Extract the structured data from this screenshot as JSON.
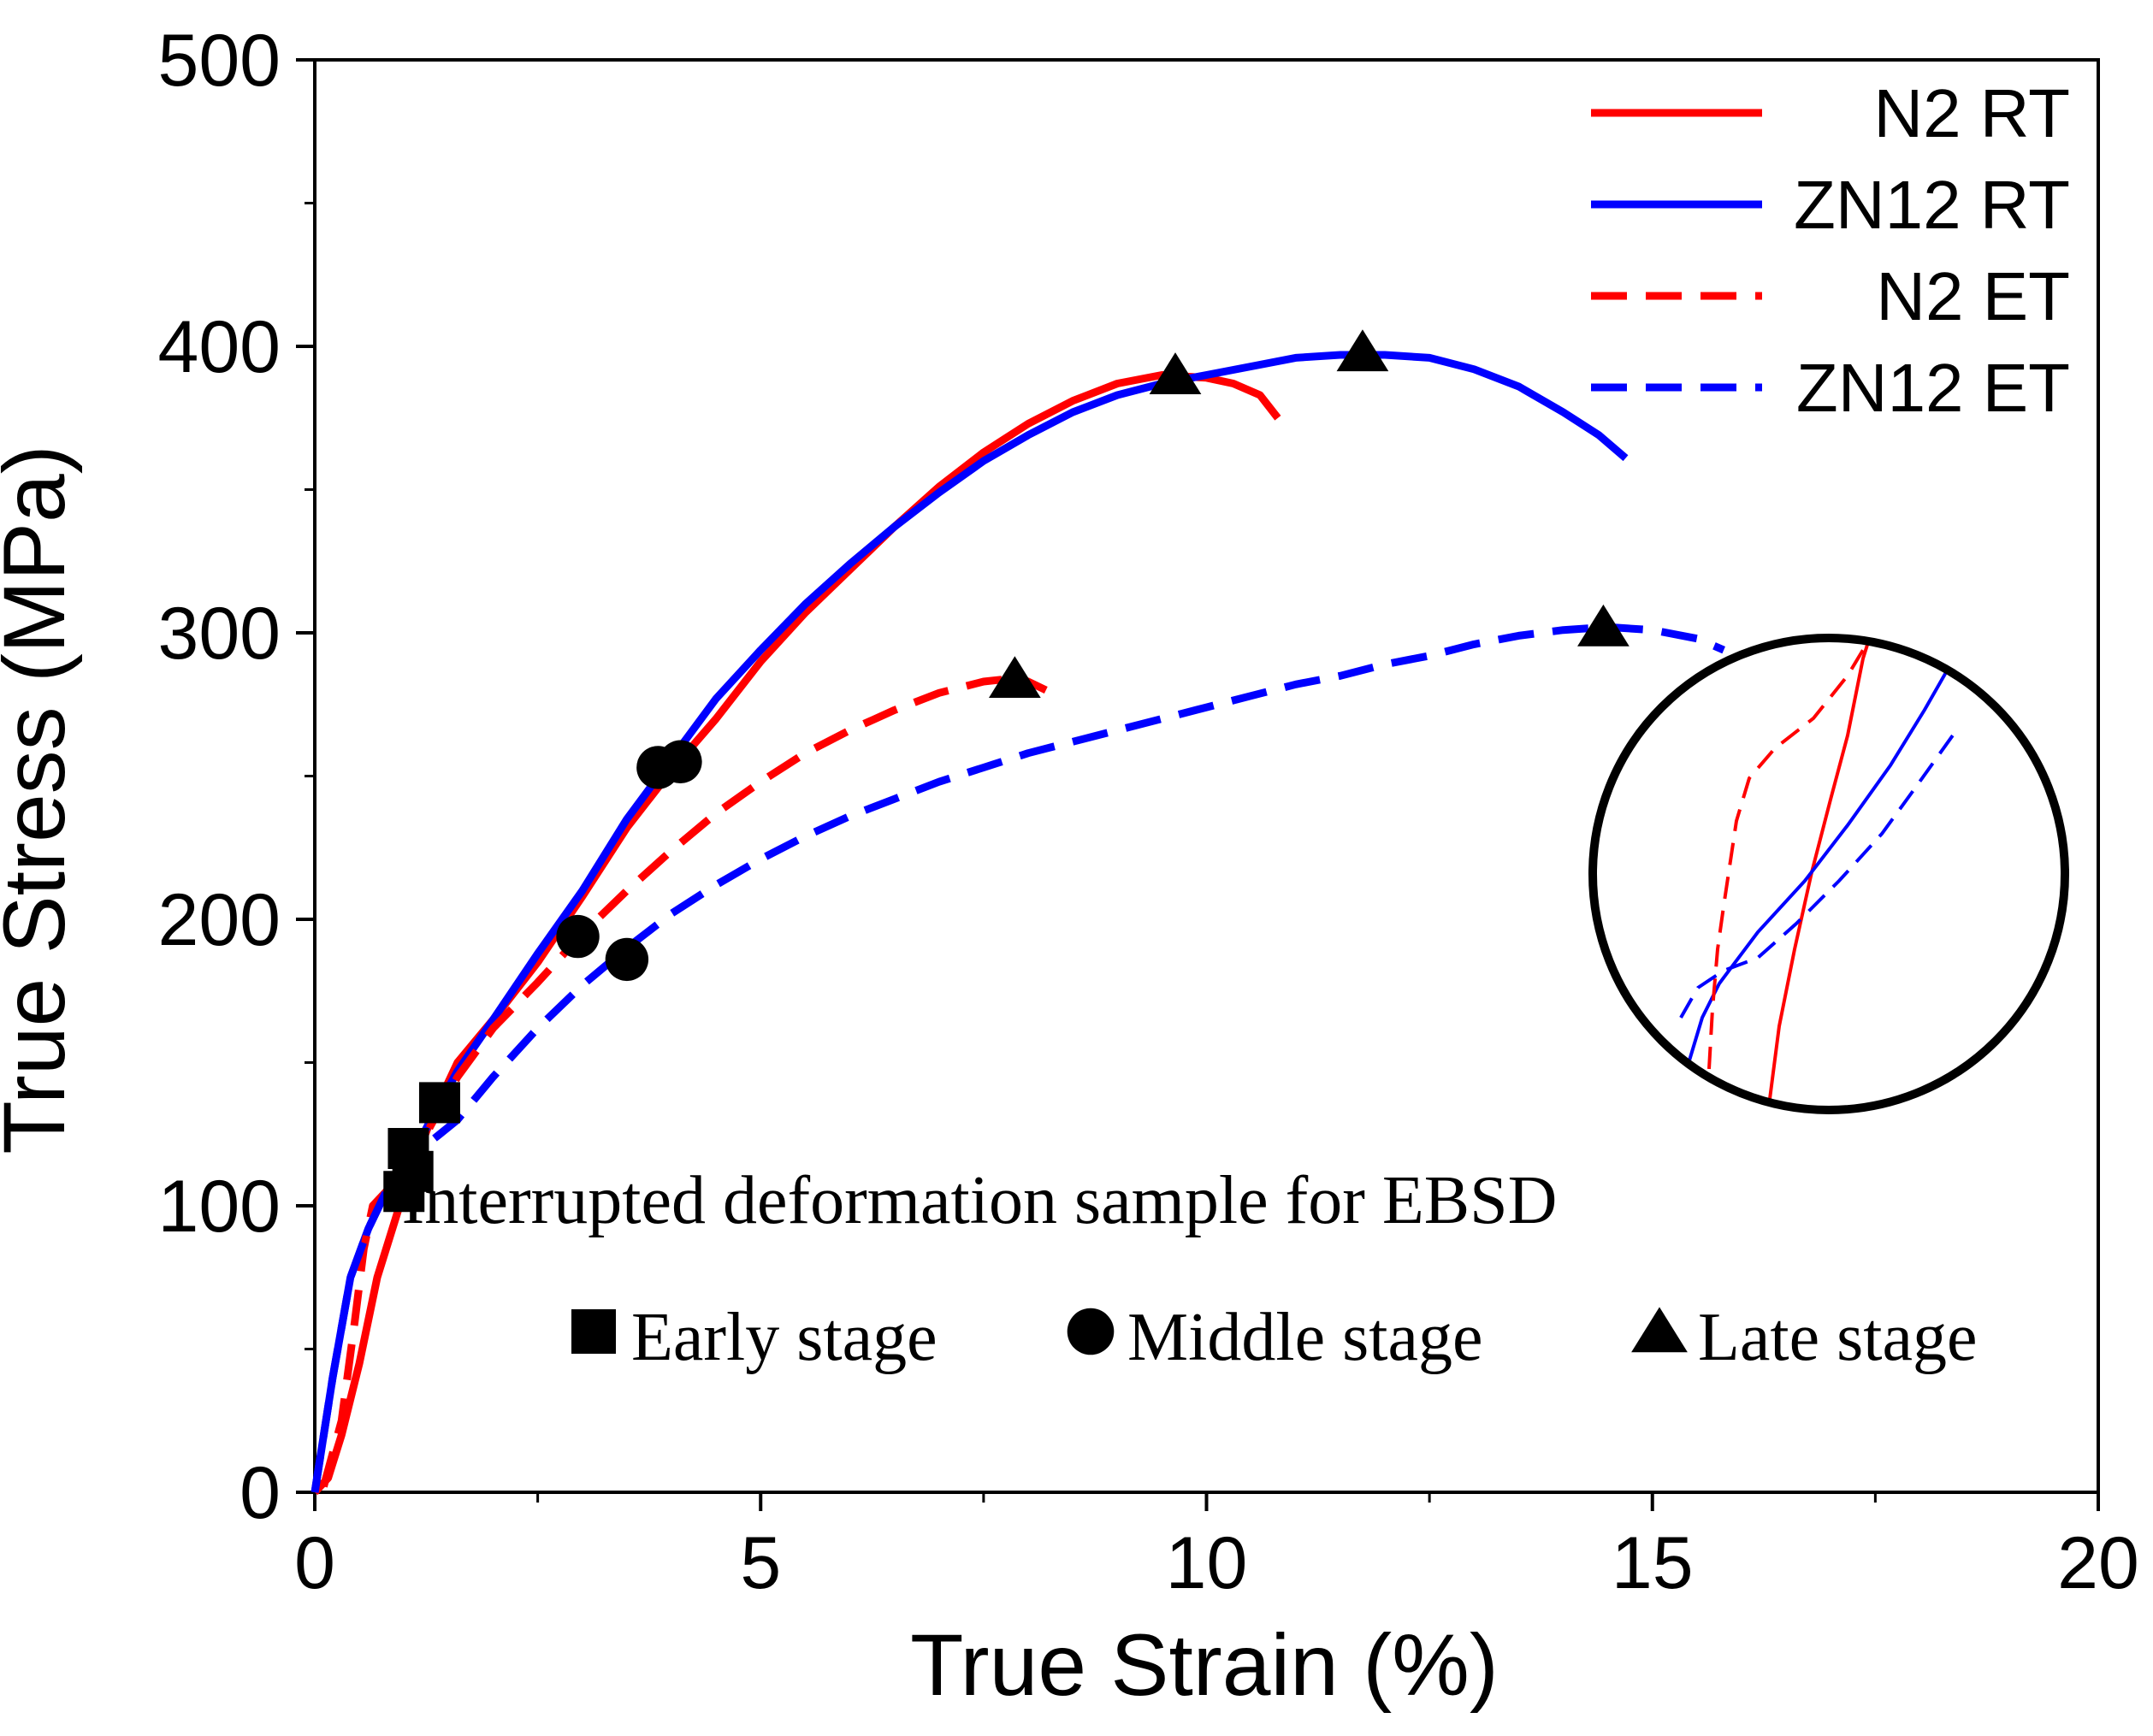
{
  "chart_data": {
    "type": "line",
    "title": "",
    "xlabel": "True Strain (%)",
    "ylabel": "True Stress (MPa)",
    "xlim": [
      0,
      20
    ],
    "ylim": [
      0,
      500
    ],
    "xticks": [
      0,
      5,
      10,
      15,
      20
    ],
    "yticks": [
      0,
      100,
      200,
      300,
      400,
      500
    ],
    "grid": false,
    "legend_position": "top-right",
    "series": [
      {
        "name": "N2 RT",
        "color": "#ff0000",
        "style": "solid",
        "x": [
          0,
          0.15,
          0.3,
          0.5,
          0.7,
          1.0,
          1.3,
          1.6,
          2.0,
          2.5,
          3.0,
          3.5,
          4.0,
          4.5,
          5.0,
          5.5,
          6.0,
          6.5,
          7.0,
          7.5,
          8.0,
          8.5,
          9.0,
          9.5,
          10.0,
          10.3,
          10.6,
          10.8
        ],
        "y": [
          0,
          5,
          20,
          45,
          75,
          105,
          130,
          150,
          165,
          185,
          208,
          232,
          252,
          270,
          290,
          307,
          322,
          337,
          351,
          363,
          373,
          381,
          387,
          390,
          389,
          387,
          383,
          375
        ]
      },
      {
        "name": "ZN12 RT",
        "color": "#0000ff",
        "style": "solid",
        "x": [
          0,
          0.2,
          0.4,
          0.6,
          0.8,
          1.0,
          1.3,
          1.6,
          2.0,
          2.5,
          3.0,
          3.5,
          4.0,
          4.5,
          5.0,
          5.5,
          6.0,
          6.5,
          7.0,
          7.5,
          8.0,
          8.5,
          9.0,
          9.5,
          10.0,
          10.5,
          11.0,
          11.5,
          12.0,
          12.5,
          13.0,
          13.5,
          14.0,
          14.4,
          14.7
        ],
        "y": [
          0,
          40,
          75,
          92,
          105,
          112,
          130,
          147,
          165,
          188,
          210,
          235,
          256,
          277,
          294,
          310,
          324,
          337,
          349,
          360,
          369,
          377,
          383,
          387,
          390,
          393,
          396,
          397,
          397,
          396,
          392,
          386,
          377,
          369,
          361
        ]
      },
      {
        "name": "N2 ET",
        "color": "#ff0000",
        "style": "dashed",
        "x": [
          0.1,
          0.3,
          0.45,
          0.55,
          0.65,
          0.8,
          1.0,
          1.3,
          1.6,
          2.0,
          2.5,
          3.0,
          3.5,
          4.0,
          4.5,
          5.0,
          5.5,
          6.0,
          6.5,
          7.0,
          7.5,
          7.8,
          8.0,
          8.2
        ],
        "y": [
          2,
          25,
          60,
          85,
          100,
          105,
          110,
          128,
          145,
          162,
          178,
          195,
          210,
          224,
          237,
          248,
          258,
          266,
          273,
          279,
          283,
          284,
          283,
          280
        ]
      },
      {
        "name": "ZN12 ET",
        "color": "#0000ff",
        "style": "dashed",
        "x": [
          0,
          0.2,
          0.4,
          0.6,
          0.8,
          1.0,
          1.2,
          1.4,
          1.6,
          2.0,
          2.5,
          3.0,
          3.5,
          4.0,
          4.5,
          5.0,
          5.5,
          6.0,
          6.5,
          7.0,
          7.5,
          8.0,
          8.5,
          9.0,
          9.5,
          10.0,
          10.5,
          11.0,
          11.5,
          12.0,
          12.5,
          13.0,
          13.5,
          14.0,
          14.5,
          15.0,
          15.5,
          15.8
        ],
        "y": [
          0,
          40,
          75,
          92,
          105,
          113,
          120,
          125,
          130,
          145,
          162,
          177,
          190,
          202,
          212,
          221,
          229,
          236,
          242,
          248,
          253,
          258,
          262,
          266,
          270,
          274,
          278,
          282,
          285,
          289,
          292,
          296,
          299,
          301,
          302,
          301,
          298,
          294
        ]
      }
    ],
    "markers": [
      {
        "stage": "early",
        "x": 1.0,
        "y": 105
      },
      {
        "stage": "early",
        "x": 1.1,
        "y": 112
      },
      {
        "stage": "early",
        "x": 1.05,
        "y": 120
      },
      {
        "stage": "early",
        "x": 1.4,
        "y": 136
      },
      {
        "stage": "middle",
        "x": 3.85,
        "y": 253
      },
      {
        "stage": "middle",
        "x": 4.1,
        "y": 255
      },
      {
        "stage": "middle",
        "x": 2.95,
        "y": 194
      },
      {
        "stage": "middle",
        "x": 3.5,
        "y": 186
      },
      {
        "stage": "late",
        "x": 9.65,
        "y": 390
      },
      {
        "stage": "late",
        "x": 11.75,
        "y": 398
      },
      {
        "stage": "late",
        "x": 7.85,
        "y": 284
      },
      {
        "stage": "late",
        "x": 14.45,
        "y": 302
      }
    ],
    "annotation_title": "Interrupted deformation sample for EBSD",
    "marker_legend": [
      {
        "shape": "square",
        "label": "Early stage"
      },
      {
        "shape": "circle",
        "label": "Middle stage"
      },
      {
        "shape": "triangle",
        "label": "Late stage"
      }
    ],
    "inset": {
      "description_shape": "magnified circle",
      "series": [
        {
          "name": "N2 RT",
          "color": "#ff0000",
          "style": "solid"
        },
        {
          "name": "ZN12 RT",
          "color": "#0000ff",
          "style": "solid"
        },
        {
          "name": "N2 ET",
          "color": "#ff0000",
          "style": "dashed"
        },
        {
          "name": "ZN12 ET",
          "color": "#0000ff",
          "style": "dashed"
        }
      ]
    }
  }
}
